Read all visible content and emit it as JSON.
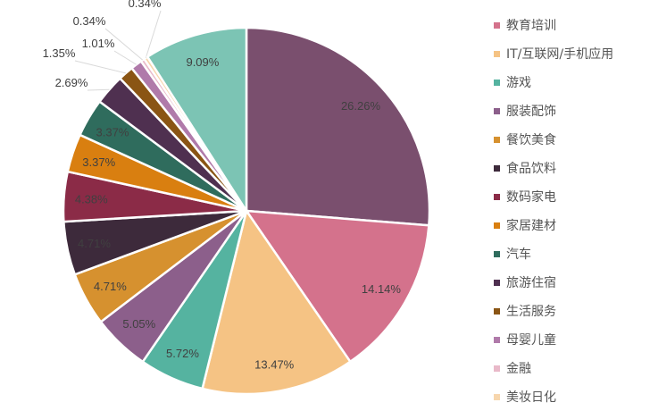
{
  "chart_data": {
    "type": "pie",
    "title": "",
    "start": "top-clockwise",
    "legend_position": "right",
    "slices": [
      {
        "label": "",
        "value": 26.26,
        "display": "26.26%",
        "color": "#7a4f6e",
        "in_legend": false
      },
      {
        "label": "教育培训",
        "value": 14.14,
        "display": "14.14%",
        "color": "#d4728c",
        "in_legend": true
      },
      {
        "label": "IT/互联网/手机应用",
        "value": 13.47,
        "display": "13.47%",
        "color": "#f5c384",
        "in_legend": true
      },
      {
        "label": "游戏",
        "value": 5.72,
        "display": "5.72%",
        "color": "#55b3a0",
        "in_legend": true
      },
      {
        "label": "服装配饰",
        "value": 5.05,
        "display": "5.05%",
        "color": "#8c5f8b",
        "in_legend": true
      },
      {
        "label": "餐饮美食",
        "value": 4.71,
        "display": "4.71%",
        "color": "#d6912f",
        "in_legend": true
      },
      {
        "label": "食品饮料",
        "value": 4.71,
        "display": "4.71%",
        "color": "#3d2a3b",
        "in_legend": true
      },
      {
        "label": "数码家电",
        "value": 4.38,
        "display": "4.38%",
        "color": "#8b2b47",
        "in_legend": true
      },
      {
        "label": "家居建材",
        "value": 3.37,
        "display": "3.37%",
        "color": "#d97f10",
        "in_legend": true
      },
      {
        "label": "汽车",
        "value": 3.37,
        "display": "3.37%",
        "color": "#2f6c5d",
        "in_legend": true
      },
      {
        "label": "旅游住宿",
        "value": 2.69,
        "display": "2.69%",
        "color": "#4f3050",
        "in_legend": true
      },
      {
        "label": "生活服务",
        "value": 1.35,
        "display": "1.35%",
        "color": "#8a5514",
        "in_legend": true
      },
      {
        "label": "母婴儿童",
        "value": 1.01,
        "display": "1.01%",
        "color": "#b07aaa",
        "in_legend": true
      },
      {
        "label": "金融",
        "value": 0.34,
        "display": "0.34%",
        "color": "#e9b9c9",
        "in_legend": true
      },
      {
        "label": "美妆日化",
        "value": 0.34,
        "display": "0.34%",
        "color": "#f7d6ad",
        "in_legend": true
      },
      {
        "label": "",
        "value": 9.09,
        "display": "9.09%",
        "color": "#7cc4b4",
        "in_legend": false
      }
    ]
  }
}
